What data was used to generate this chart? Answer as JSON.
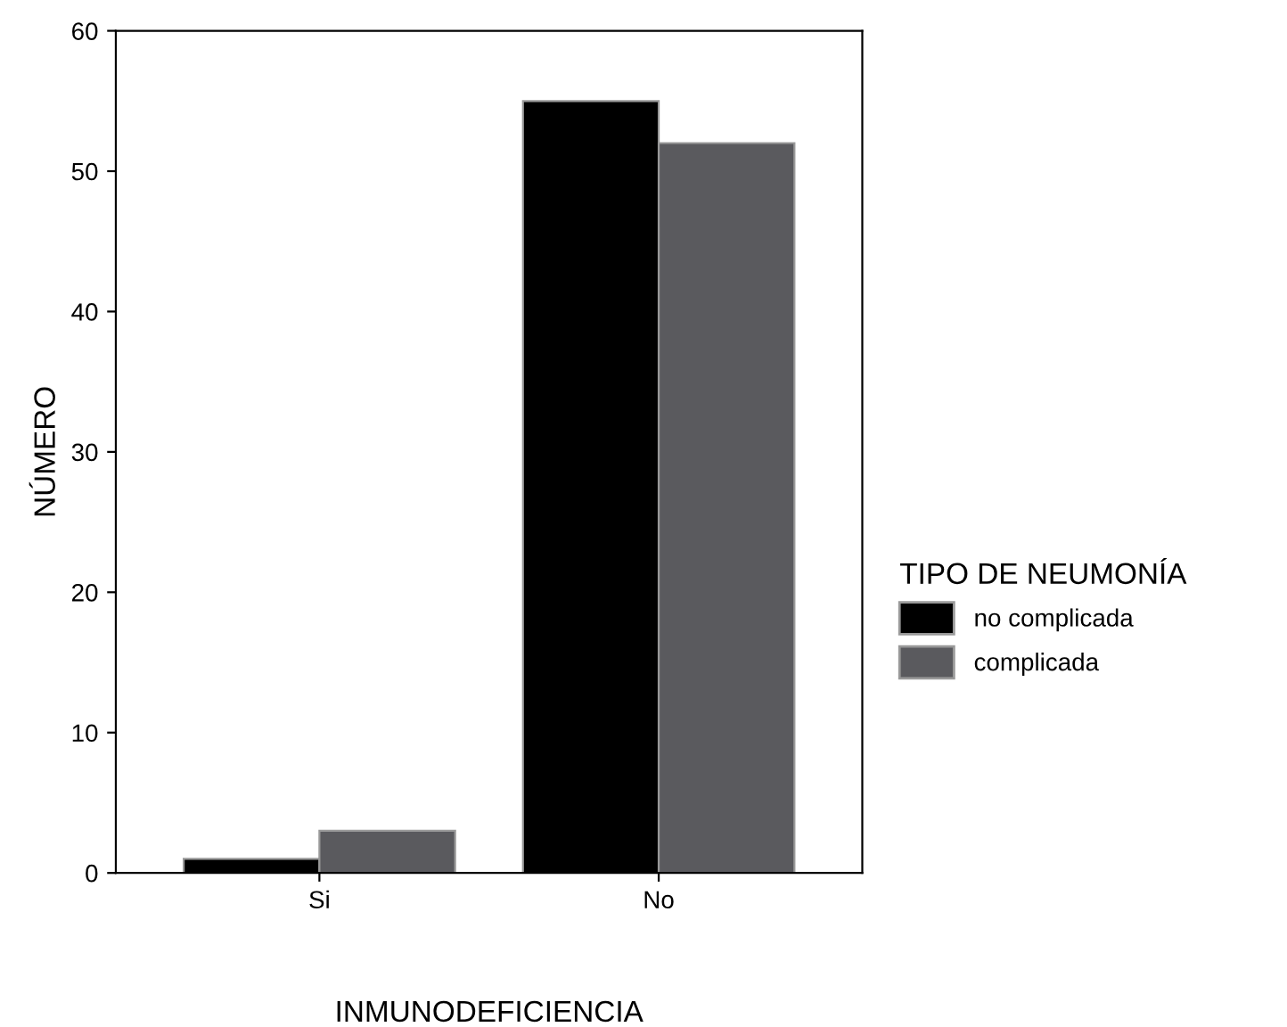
{
  "chart_data": {
    "type": "bar",
    "xlabel": "INMUNODEFICIENCIA",
    "ylabel": "NÚMERO",
    "legend_title": "TIPO DE NEUMONÍA",
    "categories": [
      "Si",
      "No"
    ],
    "series": [
      {
        "name": "no complicada",
        "color": "#000000",
        "values": [
          1,
          55
        ]
      },
      {
        "name": "complicada",
        "color": "#5a5a5e",
        "values": [
          3,
          52
        ]
      }
    ],
    "ylim": [
      0,
      60
    ],
    "yticks": [
      0,
      10,
      20,
      30,
      40,
      50,
      60
    ],
    "grid": false,
    "legend": "right"
  }
}
